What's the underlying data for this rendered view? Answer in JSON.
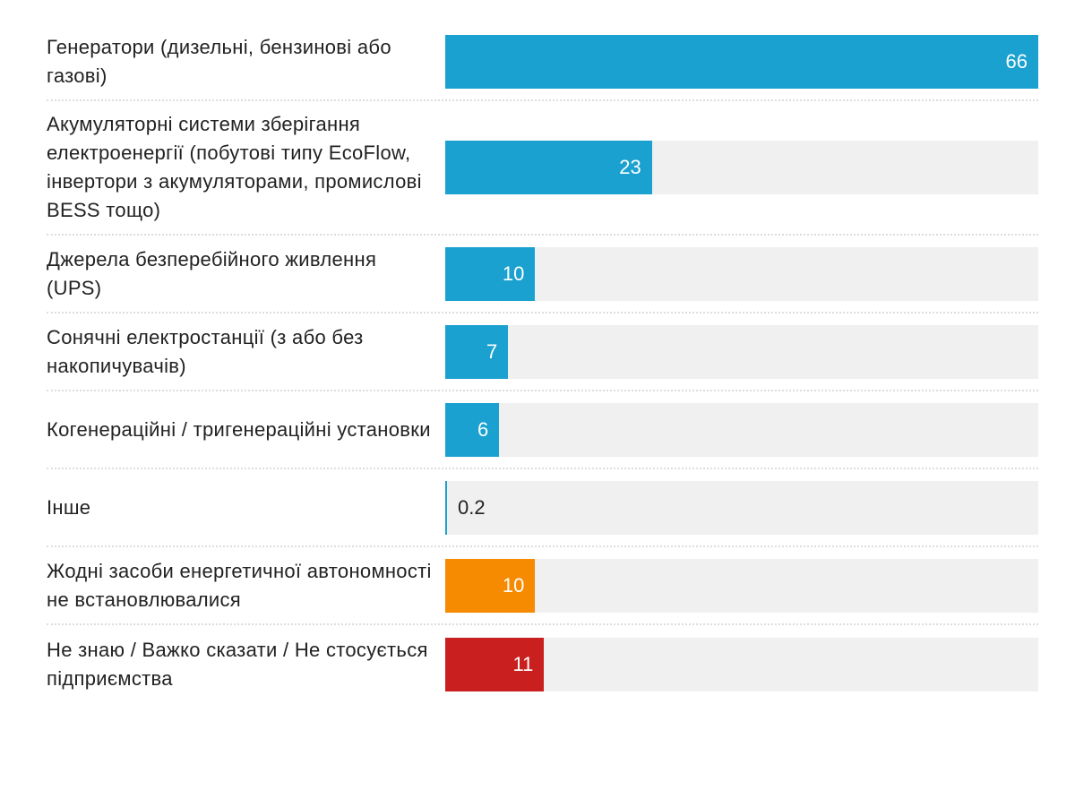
{
  "chart_data": {
    "type": "bar",
    "orientation": "horizontal",
    "categories": [
      "Генератори (дизельні, бензинові або газові)",
      "Акумуляторні системи зберігання електроенергії (побутові типу EcoFlow, інвертори з акумуляторами, промислові BESS тощо)",
      "Джерела безперебійного живлення (UPS)",
      "Сонячні електростанції (з або без накопичувачів)",
      "Когенераційні / тригенераційні установки",
      "Інше",
      "Жодні засоби енергетичної автономності не встановлювалися",
      "Не знаю / Важко сказати / Не стосується підприємства"
    ],
    "values": [
      66,
      23,
      10,
      7,
      6,
      0.2,
      10,
      11
    ],
    "colors": [
      "#1aa1d0",
      "#1aa1d0",
      "#1aa1d0",
      "#1aa1d0",
      "#1aa1d0",
      "#1aa1d0",
      "#f68a00",
      "#c9201f"
    ],
    "xlim": [
      0,
      66
    ]
  }
}
